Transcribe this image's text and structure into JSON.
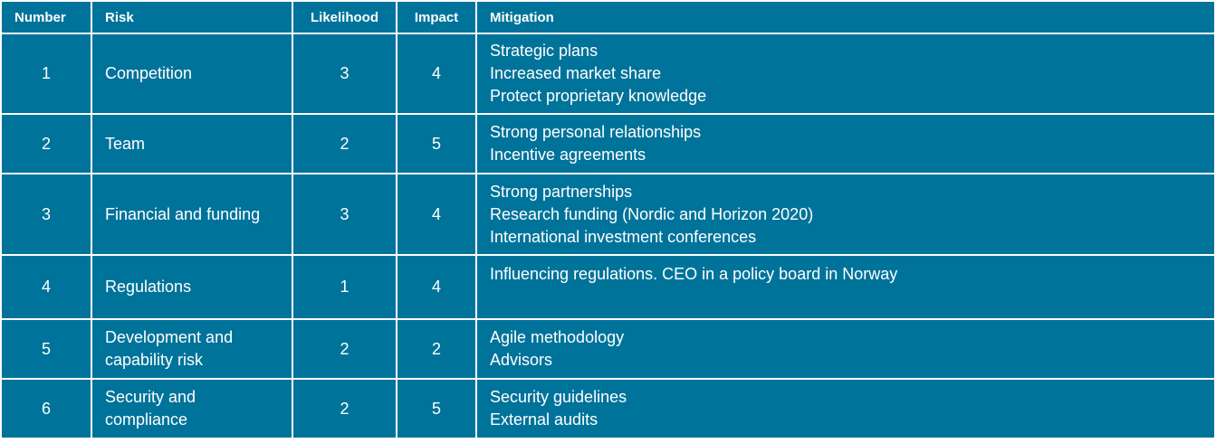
{
  "table": {
    "headers": {
      "number": "Number",
      "risk": "Risk",
      "likelihood": "Likelihood",
      "impact": "Impact",
      "mitigation": "Mitigation"
    },
    "rows": [
      {
        "number": "1",
        "risk": "Competition",
        "likelihood": "3",
        "impact": "4",
        "mitigation": [
          "Strategic plans",
          "Increased market share",
          "Protect proprietary knowledge"
        ]
      },
      {
        "number": "2",
        "risk": "Team",
        "likelihood": "2",
        "impact": "5",
        "mitigation": [
          "Strong personal relationships",
          "Incentive agreements"
        ]
      },
      {
        "number": "3",
        "risk": "Financial and funding",
        "likelihood": "3",
        "impact": "4",
        "mitigation": [
          "Strong partnerships",
          "Research funding (Nordic and Horizon 2020)",
          "International investment conferences"
        ]
      },
      {
        "number": "4",
        "risk": "Regulations",
        "likelihood": "1",
        "impact": "4",
        "mitigation": [
          "Influencing regulations. CEO in a policy board in Norway"
        ]
      },
      {
        "number": "5",
        "risk": "Development and capability risk",
        "likelihood": "2",
        "impact": "2",
        "mitigation": [
          "Agile methodology",
          "Advisors"
        ]
      },
      {
        "number": "6",
        "risk": "Security and compliance",
        "likelihood": "2",
        "impact": "5",
        "mitigation": [
          "Security guidelines",
          "External audits"
        ]
      }
    ]
  },
  "colors": {
    "cell_background": "#00739a",
    "grid_lines": "#ffffff",
    "text": "#ffffff"
  }
}
